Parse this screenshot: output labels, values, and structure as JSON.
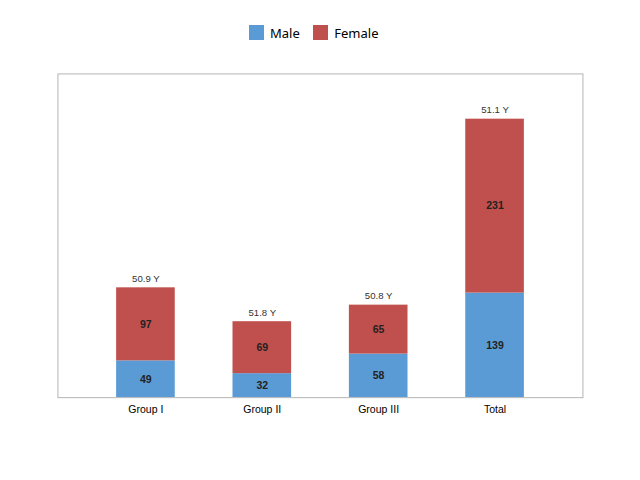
{
  "chart_data": {
    "type": "bar",
    "stacked": true,
    "categories": [
      "Group I",
      "Group II",
      "Group III",
      "Total"
    ],
    "series": [
      {
        "name": "Male",
        "color": "#5B9BD5",
        "values": [
          49,
          32,
          58,
          139
        ]
      },
      {
        "name": "Female",
        "color": "#C0504D",
        "values": [
          97,
          69,
          65,
          231
        ]
      }
    ],
    "annotations": [
      "50.9 Y",
      "51.8 Y",
      "50.8 Y",
      "51.1 Y"
    ],
    "ylim": [
      0,
      430
    ],
    "tick_labels": "x",
    "data_labels": true,
    "grid": false,
    "legend": "top"
  }
}
